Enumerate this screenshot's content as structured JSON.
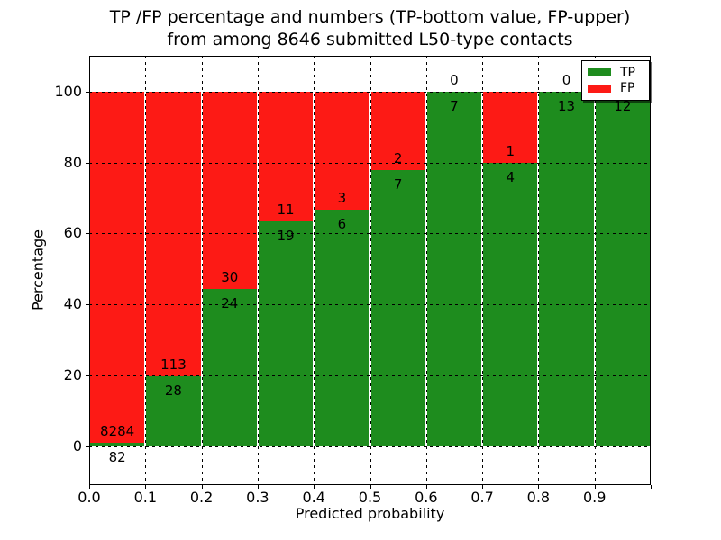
{
  "title": {
    "line1": "TP /FP percentage and numbers (TP-bottom value, FP-upper)",
    "line2": "from among 8646 submitted L50-type contacts"
  },
  "axes": {
    "ylabel": "Percentage",
    "xlabel": "Predicted probability",
    "y_ticks": [
      {
        "value": 0,
        "label": "0"
      },
      {
        "value": 20,
        "label": "20"
      },
      {
        "value": 40,
        "label": "40"
      },
      {
        "value": 60,
        "label": "60"
      },
      {
        "value": 80,
        "label": "80"
      },
      {
        "value": 100,
        "label": "100"
      }
    ],
    "x_ticks": [
      {
        "value": 0.0,
        "label": "0.0"
      },
      {
        "value": 0.1,
        "label": "0.1"
      },
      {
        "value": 0.2,
        "label": "0.2"
      },
      {
        "value": 0.3,
        "label": "0.3"
      },
      {
        "value": 0.4,
        "label": "0.4"
      },
      {
        "value": 0.5,
        "label": "0.5"
      },
      {
        "value": 0.6,
        "label": "0.6"
      },
      {
        "value": 0.7,
        "label": "0.7"
      },
      {
        "value": 0.8,
        "label": "0.8"
      },
      {
        "value": 0.9,
        "label": "0.9"
      }
    ]
  },
  "legend": {
    "position": "upper-right",
    "items": [
      {
        "label": "TP",
        "color": "#1e8c1e"
      },
      {
        "label": "FP",
        "color": "#fd1a15"
      }
    ]
  },
  "colors": {
    "tp": "#1e8c1e",
    "fp": "#fd1a15",
    "background": "#ffffff",
    "text": "#000000"
  },
  "chart_data": {
    "type": "bar",
    "stacked": true,
    "normalized_to_percent": true,
    "title": "TP /FP percentage and numbers (TP-bottom value, FP-upper) from among 8646 submitted L50-type contacts",
    "xlabel": "Predicted probability",
    "ylabel": "Percentage",
    "grid": true,
    "legend_position": "upper right",
    "xlim": [
      0.0,
      1.0
    ],
    "ylim": [
      -11,
      110
    ],
    "bin_edges": [
      0.0,
      0.1,
      0.2,
      0.3,
      0.4,
      0.5,
      0.6,
      0.7,
      0.8,
      0.9,
      1.0
    ],
    "categories": [
      "0.0-0.1",
      "0.1-0.2",
      "0.2-0.3",
      "0.3-0.4",
      "0.4-0.5",
      "0.5-0.6",
      "0.6-0.7",
      "0.7-0.8",
      "0.8-0.9",
      "0.9-1.0"
    ],
    "series": [
      {
        "name": "TP",
        "color": "#1e8c1e",
        "counts": [
          82,
          28,
          24,
          19,
          6,
          7,
          7,
          4,
          13,
          12
        ]
      },
      {
        "name": "FP",
        "color": "#fd1a15",
        "counts": [
          8284,
          113,
          30,
          11,
          3,
          2,
          0,
          1,
          0,
          0
        ]
      }
    ],
    "tp_percent": [
      0.98,
      19.86,
      44.44,
      63.33,
      66.67,
      77.78,
      100.0,
      80.0,
      100.0,
      100.0
    ],
    "total_contacts": 8646
  }
}
